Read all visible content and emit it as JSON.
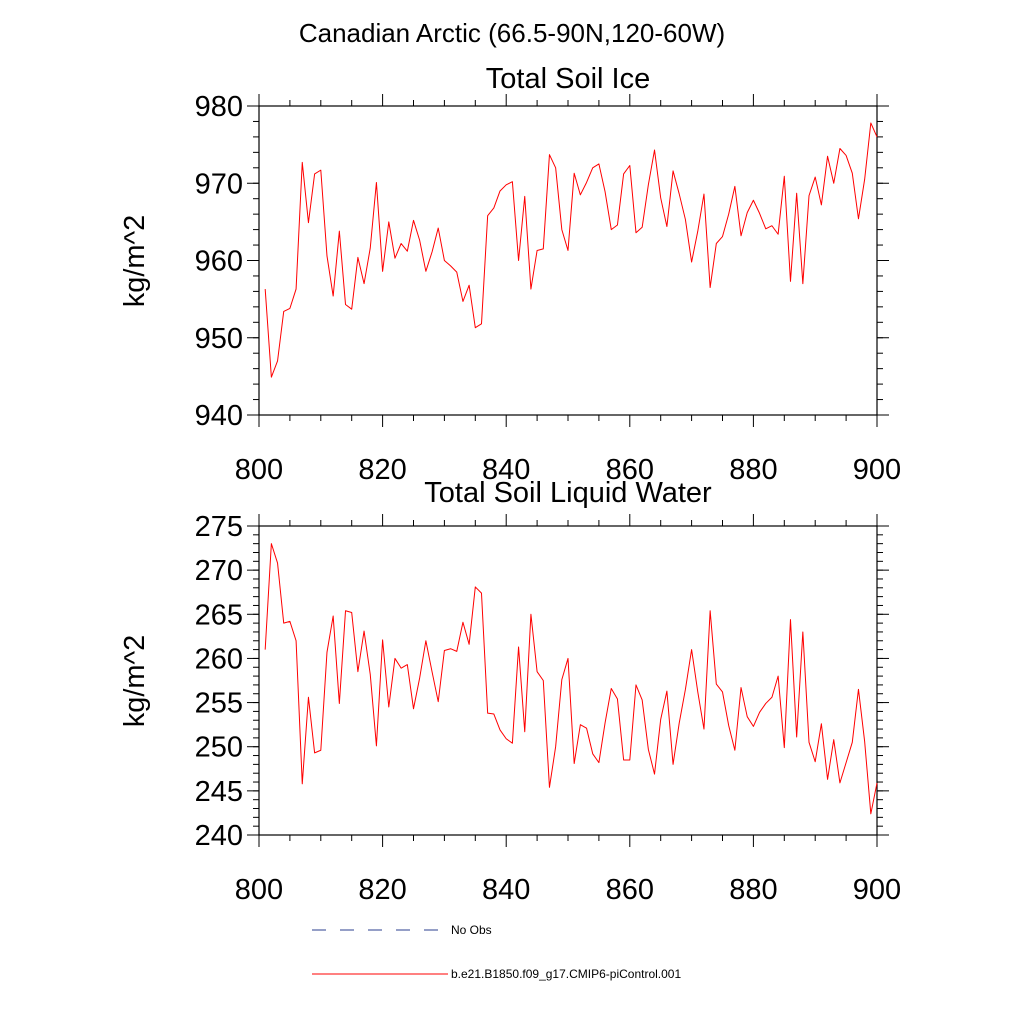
{
  "figure": {
    "suptitle": "Canadian Arctic (66.5-90N,120-60W)"
  },
  "legend": {
    "position": "bottom",
    "entries": [
      {
        "label": "No Obs",
        "color": "#2b3f8f",
        "style": "dashed"
      },
      {
        "label": "b.e21.B1850.f09_g17.CMIP6-piControl.001",
        "color": "#ff0000",
        "style": "solid"
      }
    ]
  },
  "chart_data": [
    {
      "type": "line",
      "title": "Total Soil Ice",
      "xlabel": "",
      "ylabel": "kg/m^2",
      "xlim": [
        800,
        900
      ],
      "ylim": [
        940,
        980
      ],
      "xticks": [
        800,
        820,
        840,
        860,
        880,
        900
      ],
      "yticks": [
        940,
        950,
        960,
        970,
        980
      ],
      "grid": false,
      "x_start": 801,
      "series": [
        {
          "name": "b.e21.B1850.f09_g17.CMIP6-piControl.001",
          "color": "#ff0000",
          "values": [
            956.3,
            944.9,
            947.0,
            953.4,
            953.8,
            956.3,
            972.7,
            964.9,
            971.2,
            971.7,
            960.6,
            955.4,
            963.8,
            954.3,
            953.7,
            960.4,
            957.0,
            961.6,
            970.1,
            958.6,
            965.0,
            960.3,
            962.2,
            961.2,
            965.2,
            962.6,
            958.6,
            961.1,
            964.2,
            960.0,
            959.3,
            958.5,
            954.7,
            956.8,
            951.3,
            951.8,
            965.8,
            966.8,
            969.0,
            969.8,
            970.2,
            960.0,
            968.3,
            956.3,
            961.3,
            961.5,
            973.7,
            972.0,
            964.0,
            961.3,
            971.3,
            968.5,
            970.1,
            972.0,
            972.5,
            968.9,
            964.0,
            964.6,
            971.2,
            972.3,
            963.6,
            964.3,
            969.8,
            974.3,
            968.1,
            964.4,
            971.6,
            968.6,
            965.3,
            959.8,
            963.8,
            968.6,
            956.5,
            962.2,
            963.1,
            966.0,
            969.6,
            963.2,
            966.2,
            967.8,
            966.1,
            964.1,
            964.5,
            963.4,
            970.9,
            957.3,
            968.7,
            957.0,
            968.4,
            970.8,
            967.2,
            973.5,
            970.0,
            974.5,
            973.6,
            971.3,
            965.4,
            970.5,
            977.8,
            976.0
          ]
        }
      ]
    },
    {
      "type": "line",
      "title": "Total Soil Liquid Water",
      "xlabel": "",
      "ylabel": "kg/m^2",
      "xlim": [
        800,
        900
      ],
      "ylim": [
        240,
        275
      ],
      "xticks": [
        800,
        820,
        840,
        860,
        880,
        900
      ],
      "yticks": [
        240,
        245,
        250,
        255,
        260,
        265,
        270,
        275
      ],
      "grid": false,
      "x_start": 801,
      "series": [
        {
          "name": "b.e21.B1850.f09_g17.CMIP6-piControl.001",
          "color": "#ff0000",
          "values": [
            261.0,
            273.0,
            270.8,
            264.0,
            264.2,
            262.0,
            245.8,
            255.6,
            249.3,
            249.6,
            260.7,
            264.8,
            254.9,
            265.4,
            265.2,
            258.5,
            263.1,
            258.2,
            250.1,
            262.1,
            254.5,
            260.0,
            258.9,
            259.3,
            254.3,
            257.8,
            262.0,
            258.5,
            255.1,
            260.9,
            261.1,
            260.8,
            264.1,
            261.6,
            268.1,
            267.4,
            253.8,
            253.7,
            251.9,
            250.9,
            250.4,
            261.3,
            251.7,
            265.0,
            258.5,
            257.5,
            245.4,
            250.0,
            257.6,
            260.0,
            248.1,
            252.5,
            252.1,
            249.2,
            248.2,
            252.7,
            256.6,
            255.4,
            248.5,
            248.5,
            257.0,
            255.3,
            249.7,
            246.9,
            253.1,
            256.3,
            248.0,
            252.7,
            256.5,
            261.0,
            256.2,
            252.0,
            265.4,
            257.1,
            256.2,
            252.4,
            249.6,
            256.7,
            253.4,
            252.3,
            253.9,
            254.9,
            255.6,
            258.0,
            249.9,
            264.4,
            251.1,
            263.0,
            250.5,
            248.3,
            252.6,
            246.3,
            250.8,
            245.9,
            248.2,
            250.5,
            256.5,
            250.6,
            242.4,
            245.9
          ]
        }
      ]
    }
  ]
}
